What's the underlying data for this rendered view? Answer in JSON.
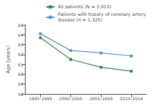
{
  "chart_data": {
    "type": "line",
    "categories": [
      "1995–1999",
      "2000–2004",
      "2005–2009",
      "2010–2014"
    ],
    "series": [
      {
        "name": "All patients (N = 3,913)",
        "color": "#3d8c50",
        "marker": "square",
        "values": [
          63.7,
          61.5,
          60.7,
          60.3
        ]
      },
      {
        "name": "Patients with history of coronary artery\ndisease (n = 1,325)",
        "color": "#5b9bd5",
        "marker": "square",
        "values": [
          64.1,
          62.4,
          62.15,
          61.85
        ]
      }
    ],
    "ylabel": "Age (years)",
    "ylim": [
      58,
      65
    ],
    "yticks": [
      58,
      59,
      60,
      61,
      62,
      63,
      64,
      65
    ],
    "grid": false,
    "legend": "upper right"
  }
}
